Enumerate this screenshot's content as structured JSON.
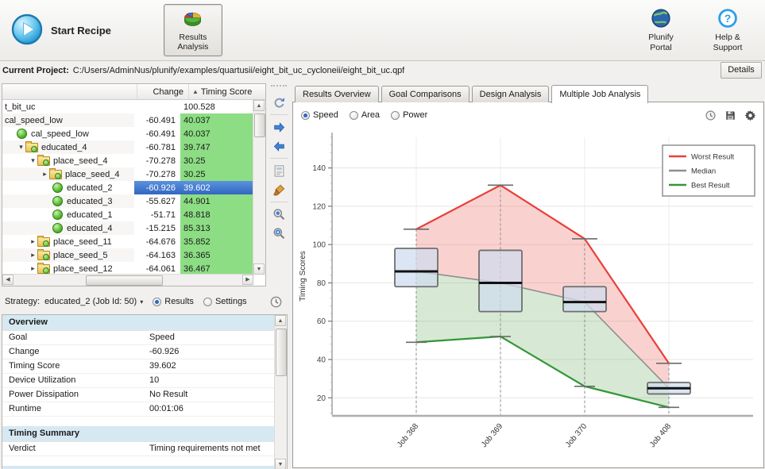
{
  "toolbar": {
    "start_recipe": "Start Recipe",
    "results_analysis": "Results Analysis",
    "plunify_portal": "Plunify Portal",
    "help_support": "Help & Support"
  },
  "project_bar": {
    "label": "Current Project:",
    "path": "C:/Users/AdminNus/plunify/examples/quartusii/eight_bit_uc_cycloneii/eight_bit_uc.qpf",
    "details_button": "Details"
  },
  "tree": {
    "columns": {
      "change": "Change",
      "timing_score": "Timing Score"
    },
    "sort": "ascending",
    "rows": [
      {
        "name": "t_bit_uc",
        "indent": 0,
        "icon": "none",
        "expander": "none",
        "change": "",
        "score": "100.528",
        "green": false,
        "selected": false
      },
      {
        "name": "cal_speed_low",
        "indent": 0,
        "icon": "none",
        "expander": "none",
        "change": "-60.491",
        "score": "40.037",
        "green": true,
        "selected": false
      },
      {
        "name": "cal_speed_low",
        "indent": 1,
        "icon": "ball",
        "expander": "none",
        "change": "-60.491",
        "score": "40.037",
        "green": true,
        "selected": false
      },
      {
        "name": "educated_4",
        "indent": 1,
        "icon": "folder",
        "expander": "expanded",
        "change": "-60.781",
        "score": "39.747",
        "green": true,
        "selected": false
      },
      {
        "name": "place_seed_4",
        "indent": 2,
        "icon": "folder",
        "expander": "expanded",
        "change": "-70.278",
        "score": "30.25",
        "green": true,
        "selected": false
      },
      {
        "name": "place_seed_4",
        "indent": 3,
        "icon": "folder",
        "expander": "collapsed",
        "change": "-70.278",
        "score": "30.25",
        "green": true,
        "selected": false
      },
      {
        "name": "educated_2",
        "indent": 4,
        "icon": "ball",
        "expander": "none",
        "change": "-60.926",
        "score": "39.602",
        "green": true,
        "selected": true
      },
      {
        "name": "educated_3",
        "indent": 4,
        "icon": "ball",
        "expander": "none",
        "change": "-55.627",
        "score": "44.901",
        "green": true,
        "selected": false
      },
      {
        "name": "educated_1",
        "indent": 4,
        "icon": "ball",
        "expander": "none",
        "change": "-51.71",
        "score": "48.818",
        "green": true,
        "selected": false
      },
      {
        "name": "educated_4",
        "indent": 4,
        "icon": "ball",
        "expander": "none",
        "change": "-15.215",
        "score": "85.313",
        "green": true,
        "selected": false
      },
      {
        "name": "place_seed_11",
        "indent": 2,
        "icon": "folder",
        "expander": "collapsed",
        "change": "-64.676",
        "score": "35.852",
        "green": true,
        "selected": false
      },
      {
        "name": "place_seed_5",
        "indent": 2,
        "icon": "folder",
        "expander": "collapsed",
        "change": "-64.163",
        "score": "36.365",
        "green": true,
        "selected": false
      },
      {
        "name": "place_seed_12",
        "indent": 2,
        "icon": "folder",
        "expander": "collapsed",
        "change": "-64.061",
        "score": "36.467",
        "green": true,
        "selected": false
      }
    ]
  },
  "side_toolbar": {
    "icons": [
      "refresh",
      "forward",
      "back",
      "report",
      "clean",
      "zoom-in",
      "zoom-out"
    ]
  },
  "strategy_bar": {
    "label": "Strategy:",
    "value": "educated_2 (Job Id: 50)",
    "radios": [
      "Results",
      "Settings"
    ],
    "selected_radio": "Results"
  },
  "details_panel": {
    "sections": [
      {
        "title": "Overview",
        "rows": [
          [
            "Goal",
            "Speed"
          ],
          [
            "Change",
            "-60.926"
          ],
          [
            "Timing Score",
            "39.602"
          ],
          [
            "Device Utilization",
            "10"
          ],
          [
            "Power Dissipation",
            "No Result"
          ],
          [
            "Runtime",
            "00:01:06"
          ]
        ]
      },
      {
        "title": "Timing Summary",
        "rows": [
          [
            "Verdict",
            "Timing requirements not met"
          ]
        ]
      },
      {
        "title": "TNS Summary",
        "rows": []
      }
    ]
  },
  "tabs": [
    {
      "label": "Results Overview",
      "active": false
    },
    {
      "label": "Goal Comparisons",
      "active": false
    },
    {
      "label": "Design Analysis",
      "active": false
    },
    {
      "label": "Multiple Job Analysis",
      "active": true
    }
  ],
  "chart_controls": {
    "radios": [
      "Speed",
      "Area",
      "Power"
    ],
    "selected": "Speed",
    "icons": [
      "history",
      "save",
      "settings"
    ]
  },
  "colors": {
    "selection_blue": "#3b74d1",
    "score_green": "#8cdd84",
    "worst_red": "#e8403a",
    "median_gray": "#8f8f8f",
    "best_green": "#339639"
  },
  "chart_data": {
    "type": "boxplot",
    "categories": [
      "Job 368",
      "Job 369",
      "Job 370",
      "Job 408"
    ],
    "series": [
      {
        "name": "Worst Result",
        "color": "#e8403a",
        "fill": "rgba(235,105,100,0.30)",
        "values": [
          108,
          131,
          103,
          38
        ]
      },
      {
        "name": "Median",
        "color": "#8f8f8f",
        "fill": "",
        "values": [
          86,
          80,
          70,
          25
        ]
      },
      {
        "name": "Best Result",
        "color": "#339639",
        "fill": "rgba(110,175,100,0.28)",
        "values": [
          49,
          52,
          26,
          15
        ]
      }
    ],
    "boxes": [
      {
        "category": "Job 368",
        "min": 49,
        "q1": 78,
        "median": 86,
        "q3": 98,
        "max": 108
      },
      {
        "category": "Job 369",
        "min": 52,
        "q1": 65,
        "median": 80,
        "q3": 97,
        "max": 131
      },
      {
        "category": "Job 370",
        "min": 26,
        "q1": 65,
        "median": 70,
        "q3": 78,
        "max": 103
      },
      {
        "category": "Job 408",
        "min": 15,
        "q1": 22,
        "median": 25,
        "q3": 28,
        "max": 38
      }
    ],
    "ylabel": "Timing Scores",
    "ylim": [
      11,
      156
    ],
    "yticks": [
      20,
      40,
      60,
      80,
      100,
      120,
      140
    ],
    "grid": true,
    "legend_position": "top-right",
    "box_fill": "rgba(206,219,239,0.72)"
  }
}
